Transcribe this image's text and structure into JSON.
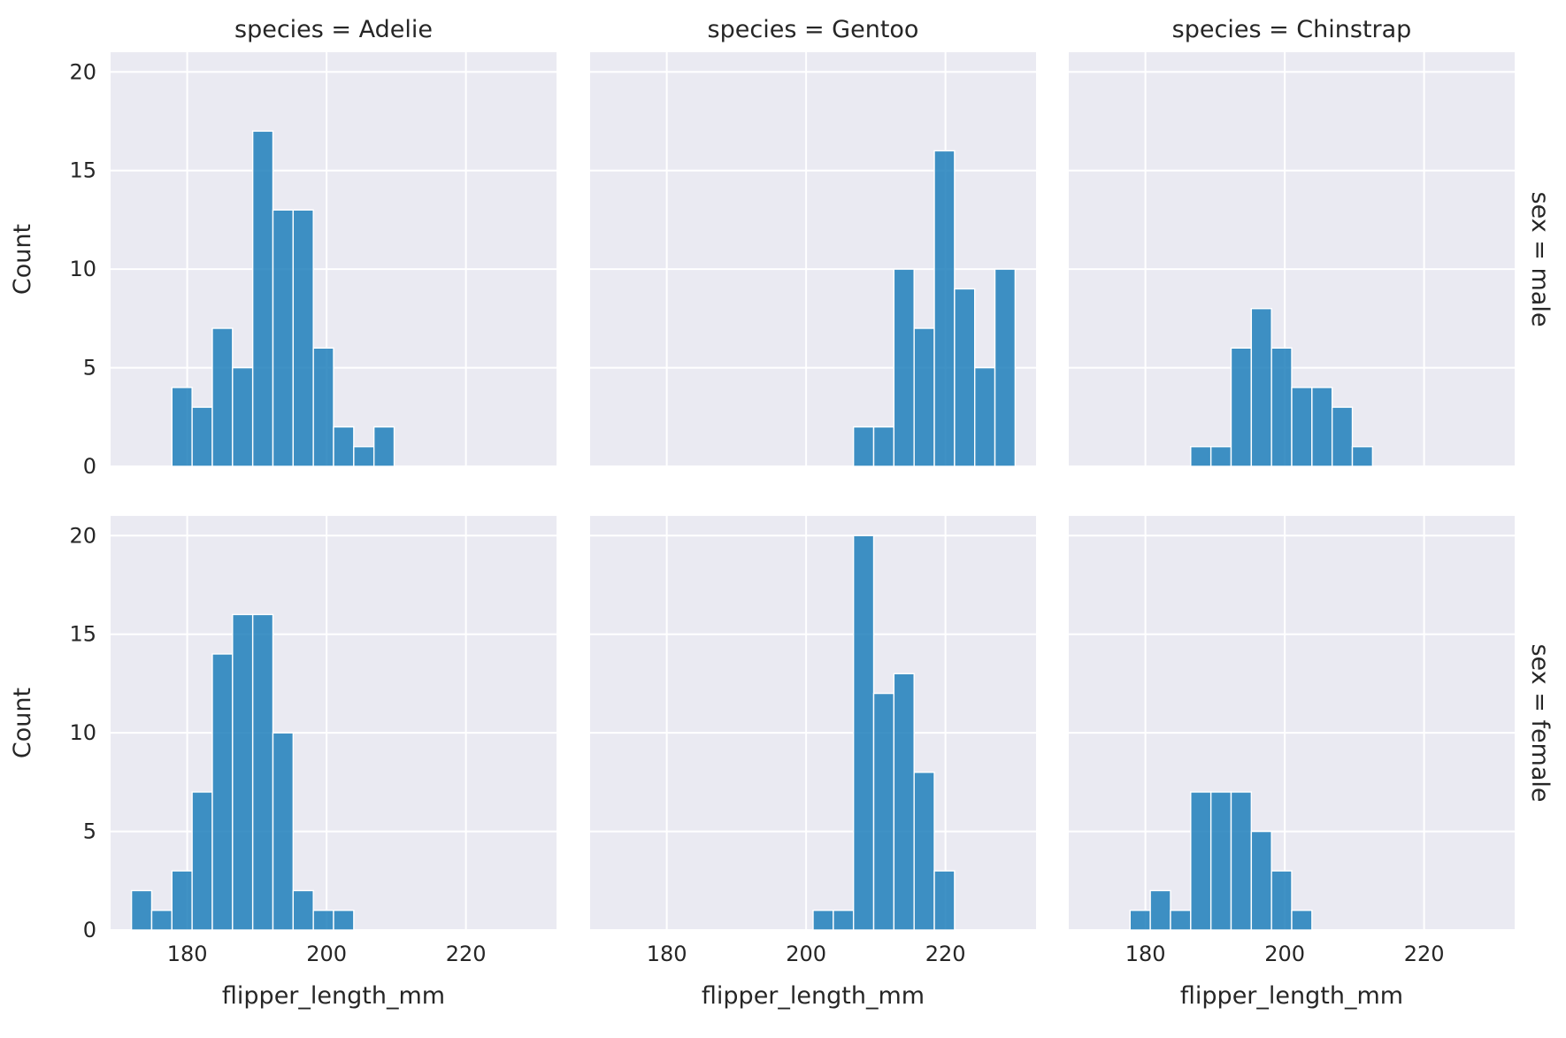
{
  "chart_data": {
    "type": "bar",
    "layout": "facet-grid",
    "col_titles": [
      "species = Adelie",
      "species = Gentoo",
      "species = Chinstrap"
    ],
    "row_titles": [
      "sex = male",
      "sex = female"
    ],
    "xlabel": "flipper_length_mm",
    "ylabel": "Count",
    "xlim": [
      169,
      233
    ],
    "ylim": [
      0,
      21
    ],
    "xticks": [
      180,
      200,
      220
    ],
    "yticks": [
      0,
      5,
      10,
      15,
      20
    ],
    "grid": true,
    "bar_color": "#1f7fbb",
    "background": "#eaeaf2",
    "bin_edges": [
      172.0,
      174.9,
      177.8,
      180.7,
      183.6,
      186.5,
      189.4,
      192.3,
      195.2,
      198.1,
      201.0,
      203.9,
      206.8,
      209.7,
      212.6,
      215.5,
      218.4,
      221.3,
      224.2,
      227.1,
      230.0
    ],
    "panels": [
      {
        "col": 0,
        "row": 0,
        "species": "Adelie",
        "sex": "male",
        "counts": [
          0,
          0,
          4,
          3,
          7,
          5,
          17,
          13,
          13,
          6,
          2,
          1,
          2,
          0,
          0,
          0,
          0,
          0,
          0,
          0
        ]
      },
      {
        "col": 1,
        "row": 0,
        "species": "Gentoo",
        "sex": "male",
        "counts": [
          0,
          0,
          0,
          0,
          0,
          0,
          0,
          0,
          0,
          0,
          0,
          0,
          2,
          2,
          10,
          7,
          16,
          9,
          5,
          10
        ]
      },
      {
        "col": 2,
        "row": 0,
        "species": "Chinstrap",
        "sex": "male",
        "counts": [
          0,
          0,
          0,
          0,
          0,
          1,
          1,
          6,
          8,
          6,
          4,
          4,
          3,
          1,
          0,
          0,
          0,
          0,
          0,
          0
        ]
      },
      {
        "col": 0,
        "row": 1,
        "species": "Adelie",
        "sex": "female",
        "counts": [
          2,
          1,
          3,
          7,
          14,
          16,
          16,
          10,
          2,
          1,
          1,
          0,
          0,
          0,
          0,
          0,
          0,
          0,
          0,
          0
        ]
      },
      {
        "col": 1,
        "row": 1,
        "species": "Gentoo",
        "sex": "female",
        "counts": [
          0,
          0,
          0,
          0,
          0,
          0,
          0,
          0,
          0,
          0,
          1,
          1,
          20,
          12,
          13,
          8,
          3,
          0,
          0,
          0
        ]
      },
      {
        "col": 2,
        "row": 1,
        "species": "Chinstrap",
        "sex": "female",
        "counts": [
          0,
          0,
          1,
          2,
          1,
          7,
          7,
          7,
          5,
          3,
          1,
          0,
          0,
          0,
          0,
          0,
          0,
          0,
          0,
          0
        ]
      }
    ]
  }
}
